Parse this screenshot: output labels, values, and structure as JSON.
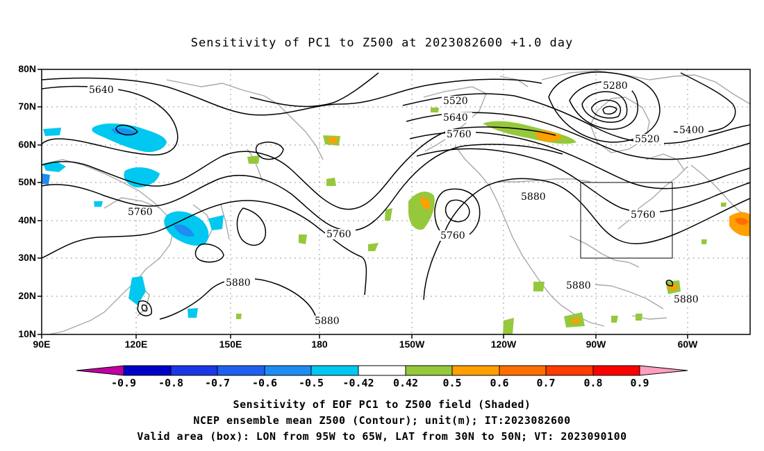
{
  "title": "Sensitivity of PC1 to Z500 at 2023082600 +1.0 day",
  "lat_labels": [
    "80N",
    "70N",
    "60N",
    "50N",
    "40N",
    "30N",
    "20N",
    "10N"
  ],
  "lon_labels": [
    "90E",
    "120E",
    "150E",
    "180",
    "150W",
    "120W",
    "90W",
    "60W"
  ],
  "contour_labels": [
    "5640",
    "5520",
    "5640",
    "5760",
    "5280",
    "5400",
    "5520",
    "5760",
    "5760",
    "5880",
    "5760",
    "5760",
    "5880",
    "5880",
    "5880",
    "5880"
  ],
  "colorbar": {
    "ticks": [
      "-0.9",
      "-0.8",
      "-0.7",
      "-0.6",
      "-0.5",
      "-0.42",
      "0.42",
      "0.5",
      "0.6",
      "0.7",
      "0.8",
      "0.9"
    ],
    "colors": [
      "#c000a0",
      "#0000c8",
      "#1a37e6",
      "#2060f0",
      "#1e8cf0",
      "#00c8f0",
      "#ffffff",
      "#96c83c",
      "#ff9f00",
      "#ff6e00",
      "#ff3c00",
      "#ff0000",
      "#ff9fc0"
    ]
  },
  "footer": {
    "line1": "Sensitivity of EOF PC1 to Z500 field (Shaded)",
    "line2": "NCEP ensemble mean Z500 (Contour); unit(m); IT:2023082600",
    "line3": "Valid area (box): LON from 95W to 65W, LAT from 30N to 50N; VT: 2023090100"
  }
}
